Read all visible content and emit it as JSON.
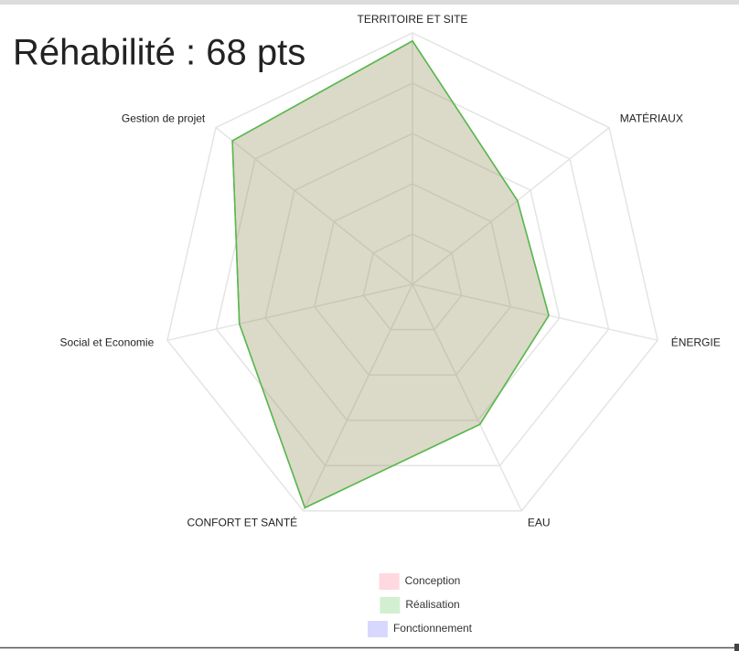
{
  "chart_data": {
    "type": "radar",
    "title": "Réhabilité : 68 pts",
    "categories": [
      "TERRITOIRE ET SITE",
      "MATÉRIAUX",
      "ÉNERGIE",
      "EAU",
      "CONFORT ET SANTÉ",
      "Social et Economie",
      "Gestion de projet"
    ],
    "series": [
      {
        "name": "Conception",
        "color": "#ff6384",
        "values": [
          4.84,
          2.67,
          2.78,
          3.09,
          4.93,
          3.53,
          4.58
        ]
      },
      {
        "name": "Réalisation",
        "color": "#4bc04b",
        "values": [
          4.84,
          2.67,
          2.78,
          3.09,
          4.93,
          3.53,
          4.58
        ]
      },
      {
        "name": "Fonctionnement",
        "color": "#6363ff",
        "values": [
          null,
          null,
          null,
          null,
          null,
          null,
          null
        ]
      }
    ],
    "rlim": [
      0,
      5
    ],
    "rticks": [
      1,
      2,
      3,
      4,
      5
    ],
    "grid": true,
    "legend": "bottom"
  }
}
